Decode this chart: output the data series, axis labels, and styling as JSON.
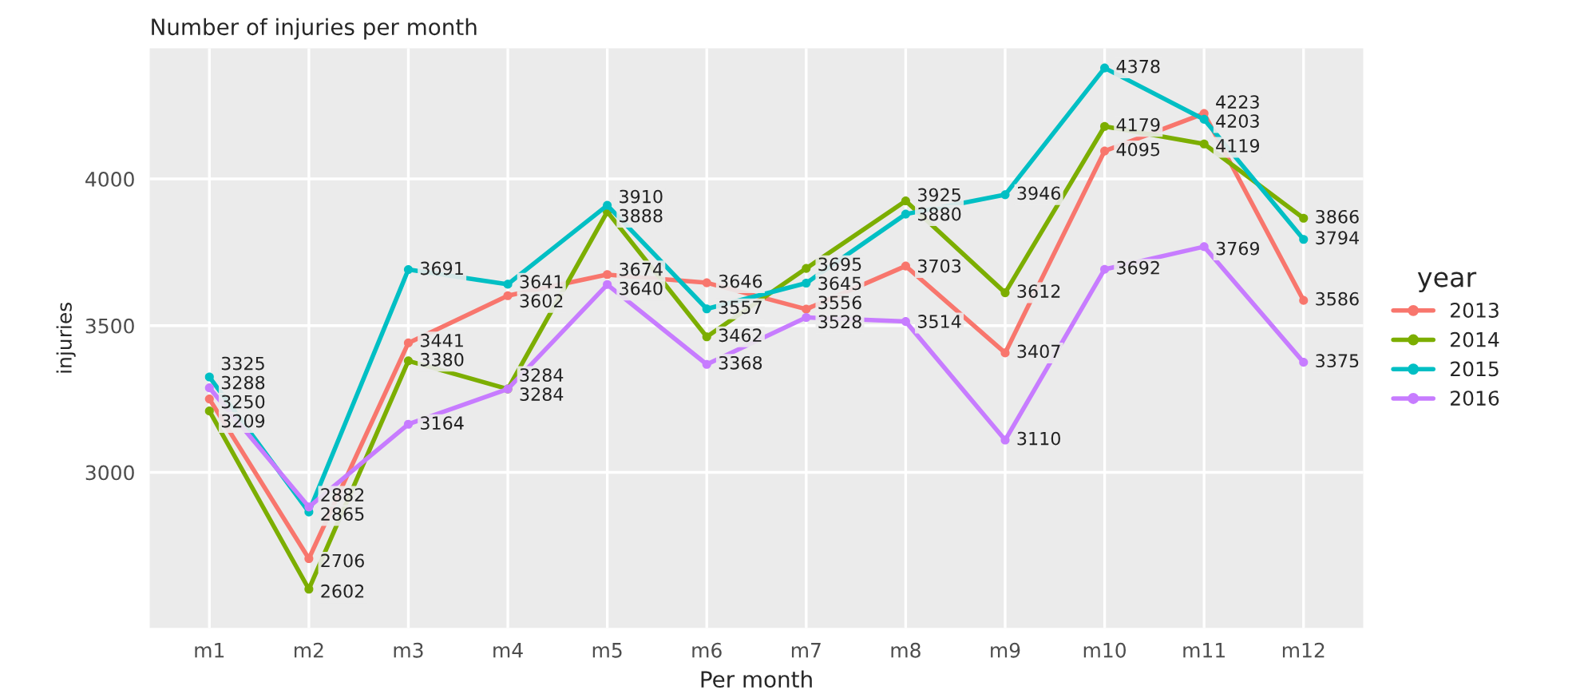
{
  "chart_data": {
    "type": "line",
    "title": "Number of injuries per month",
    "xlabel": "Per month",
    "ylabel": "injuries",
    "legend_title": "year",
    "categories": [
      "m1",
      "m2",
      "m3",
      "m4",
      "m5",
      "m6",
      "m7",
      "m8",
      "m9",
      "m10",
      "m11",
      "m12"
    ],
    "series": [
      {
        "name": "2013",
        "color": "#f8766d",
        "values": [
          3250,
          2706,
          3441,
          3602,
          3674,
          3646,
          3556,
          3703,
          3407,
          4095,
          4223,
          3586
        ]
      },
      {
        "name": "2014",
        "color": "#7cae00",
        "values": [
          3209,
          2602,
          3380,
          3284,
          3888,
          3462,
          3695,
          3925,
          3612,
          4179,
          4119,
          3866
        ]
      },
      {
        "name": "2015",
        "color": "#00bfc4",
        "values": [
          3325,
          2865,
          3691,
          3641,
          3910,
          3557,
          3645,
          3880,
          3946,
          4378,
          4203,
          3794
        ]
      },
      {
        "name": "2016",
        "color": "#c77cff",
        "values": [
          3288,
          2882,
          3164,
          3284,
          3640,
          3368,
          3528,
          3514,
          3110,
          3692,
          3769,
          3375
        ]
      }
    ],
    "ylim": [
      2470,
      4445
    ],
    "yticks": [
      3000,
      3500,
      4000
    ],
    "grid": true,
    "legend": "right",
    "marker": "circle",
    "line_style": "solid",
    "data_labels": true
  }
}
